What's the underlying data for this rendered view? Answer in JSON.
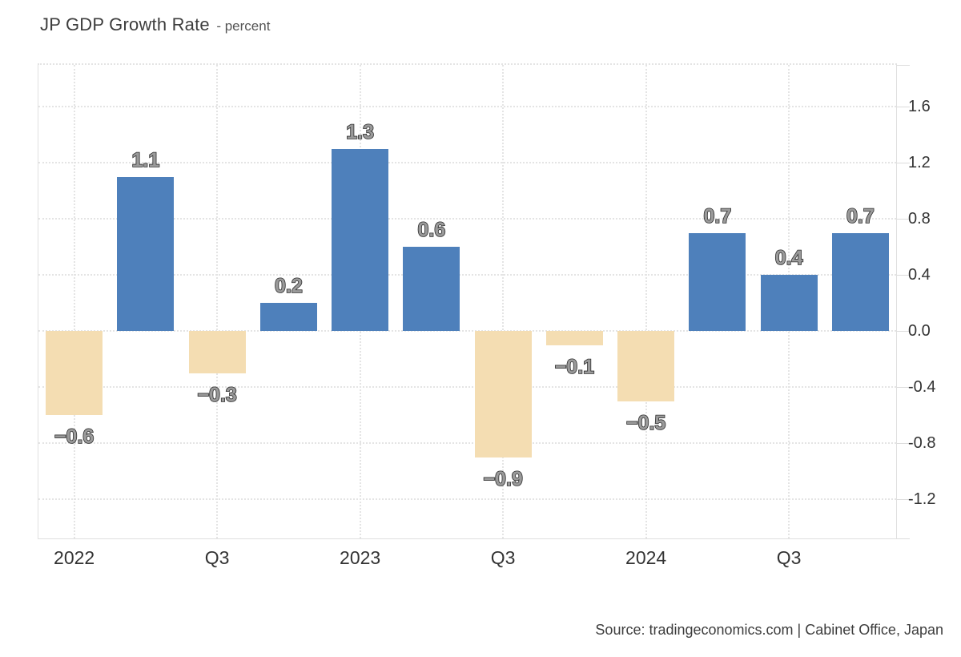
{
  "header": {
    "title": "JP GDP Growth Rate",
    "subtitle": "- percent"
  },
  "footer": {
    "source_text": "Source: tradingeconomics.com | Cabinet Office, Japan"
  },
  "colors": {
    "positive_bar": "#4e80bb",
    "negative_bar": "#f4ddb2",
    "gridline": "#e4e4e4",
    "axis_border": "#e0e0e0",
    "axis_text": "#333333",
    "value_label_fill": "#9a9a9a",
    "value_label_stroke": "#2d2d2d"
  },
  "chart_data": {
    "type": "bar",
    "title": "JP GDP Growth Rate",
    "ylabel": "percent",
    "categories": [
      "2022 Q1",
      "2022 Q2",
      "2022 Q3",
      "2022 Q4",
      "2023 Q1",
      "2023 Q2",
      "2023 Q3",
      "2023 Q4",
      "2024 Q1",
      "2024 Q2",
      "2024 Q3",
      "2024 Q4"
    ],
    "values": [
      -0.6,
      1.1,
      -0.3,
      0.2,
      1.3,
      0.6,
      -0.9,
      -0.1,
      -0.5,
      0.7,
      0.4,
      0.7
    ],
    "value_labels": [
      "−0.6",
      "1.1",
      "−0.3",
      "0.2",
      "1.3",
      "0.6",
      "−0.9",
      "−0.1",
      "−0.5",
      "0.7",
      "0.4",
      "0.7"
    ],
    "x_tick_labels": [
      "2022",
      "Q3",
      "2023",
      "Q3",
      "2024",
      "Q3"
    ],
    "x_tick_bar_indexes": [
      0,
      2,
      4,
      6,
      8,
      10
    ],
    "y_ticks": [
      1.6,
      1.2,
      0.8,
      0.4,
      0.0,
      -0.4,
      -0.8,
      -1.2
    ],
    "y_tick_labels": [
      "1.6",
      "1.2",
      "0.8",
      "0.4",
      "0.0",
      "-0.4",
      "-0.8",
      "-1.2"
    ],
    "ylim": [
      -1.48,
      1.9
    ],
    "grid": true,
    "legend_position": "none",
    "bar_color_rule": "blue for positive values, tan for negative values"
  }
}
